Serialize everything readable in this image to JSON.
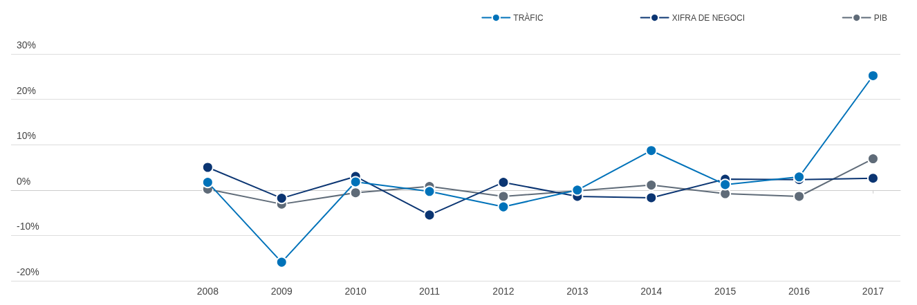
{
  "chart_data": {
    "type": "line",
    "x": [
      2008,
      2009,
      2010,
      2011,
      2012,
      2013,
      2014,
      2015,
      2016,
      2017
    ],
    "xlim": [
      2005.34,
      2017.37
    ],
    "xticks": [
      2008,
      2009,
      2010,
      2011,
      2012,
      2013,
      2014,
      2015,
      2016,
      2017
    ],
    "ylim": [
      -20,
      30
    ],
    "yticks": [
      {
        "value": -20,
        "label": "-20%"
      },
      {
        "value": -10,
        "label": "-10%"
      },
      {
        "value": 0,
        "label": "0%"
      },
      {
        "value": 10,
        "label": "10%"
      },
      {
        "value": 20,
        "label": "20%"
      },
      {
        "value": 30,
        "label": "30%"
      }
    ],
    "series": [
      {
        "name": "TRÀFIC",
        "color": "#0072b9",
        "values": [
          1.7,
          -15.9,
          1.8,
          -0.3,
          -3.7,
          0,
          8.7,
          1.2,
          2.9,
          25.2
        ]
      },
      {
        "name": "XIFRA DE NEGOCI",
        "color": "#0b3572",
        "values": [
          5.0,
          -1.8,
          3.0,
          -5.5,
          1.7,
          -1.4,
          -1.7,
          2.4,
          2.3,
          2.6
        ]
      },
      {
        "name": "PIB",
        "color": "#5f6b78",
        "values": [
          0.2,
          -3.1,
          -0.6,
          0.8,
          -1.4,
          -0.2,
          1.1,
          -0.8,
          -1.4,
          6.9
        ]
      }
    ],
    "grid": "y",
    "legend": "top right",
    "marker": "circle",
    "line_style": "solid"
  }
}
